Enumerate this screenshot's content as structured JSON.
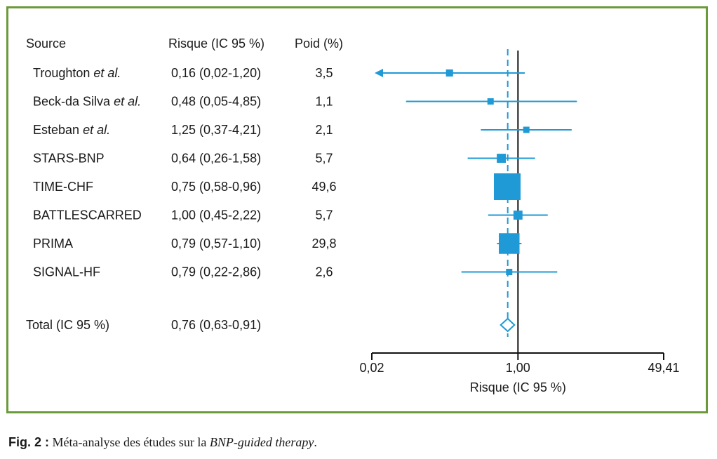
{
  "headers": {
    "source": "Source",
    "risk": "Risque (IC 95 %)",
    "weight": "Poid (%)"
  },
  "studies": [
    {
      "name": "Troughton",
      "suffix": " et al.",
      "risk_text": "0,16 (0,02-1,20)",
      "weight_text": "3,5"
    },
    {
      "name": "Beck-da Silva",
      "suffix": " et al.",
      "risk_text": "0,48 (0,05-4,85)",
      "weight_text": "1,1"
    },
    {
      "name": "Esteban",
      "suffix": " et al.",
      "risk_text": "1,25 (0,37-4,21)",
      "weight_text": "2,1"
    },
    {
      "name": "STARS-BNP",
      "suffix": "",
      "risk_text": "0,64 (0,26-1,58)",
      "weight_text": "5,7"
    },
    {
      "name": "TIME-CHF",
      "suffix": "",
      "risk_text": "0,75 (0,58-0,96)",
      "weight_text": "49,6"
    },
    {
      "name": "BATTLESCARRED",
      "suffix": "",
      "risk_text": "1,00 (0,45-2,22)",
      "weight_text": "5,7"
    },
    {
      "name": "PRIMA",
      "suffix": "",
      "risk_text": "0,79 (0,57-1,10)",
      "weight_text": "29,8"
    },
    {
      "name": "SIGNAL-HF",
      "suffix": "",
      "risk_text": "0,79 (0,22-2,86)",
      "weight_text": "2,6"
    }
  ],
  "total": {
    "label": "Total (IC 95 %)",
    "risk_text": "0,76 (0,63-0,91)"
  },
  "caption": {
    "label": "Fig. 2 :",
    "text": " Méta-analyse des études sur la ",
    "italic": "BNP-guided therapy",
    "end": "."
  },
  "chart_data": {
    "type": "forest",
    "x_scale": "log",
    "xlabel": "Risque (IC 95 %)",
    "xlim": [
      0.02,
      49.41
    ],
    "xticks": [
      {
        "value": 0.02,
        "label": "0,02"
      },
      {
        "value": 1.0,
        "label": "1,00"
      },
      {
        "value": 49.41,
        "label": "49,41"
      }
    ],
    "reference_line": 1.0,
    "pooled_line": 0.76,
    "points": [
      {
        "estimate": 0.16,
        "lower": 0.02,
        "upper": 1.2,
        "weight": 3.5,
        "arrow_left": true
      },
      {
        "estimate": 0.48,
        "lower": 0.05,
        "upper": 4.85,
        "weight": 1.1
      },
      {
        "estimate": 1.25,
        "lower": 0.37,
        "upper": 4.21,
        "weight": 2.1
      },
      {
        "estimate": 0.64,
        "lower": 0.26,
        "upper": 1.58,
        "weight": 5.7
      },
      {
        "estimate": 0.75,
        "lower": 0.58,
        "upper": 0.96,
        "weight": 49.6
      },
      {
        "estimate": 1.0,
        "lower": 0.45,
        "upper": 2.22,
        "weight": 5.7
      },
      {
        "estimate": 0.79,
        "lower": 0.57,
        "upper": 1.1,
        "weight": 29.8
      },
      {
        "estimate": 0.79,
        "lower": 0.22,
        "upper": 2.86,
        "weight": 2.6
      }
    ],
    "total": {
      "estimate": 0.76,
      "lower": 0.63,
      "upper": 0.91
    },
    "colors": {
      "marker": "#1f9ad6",
      "axis": "#111111",
      "frame": "#6b9a3a"
    }
  }
}
